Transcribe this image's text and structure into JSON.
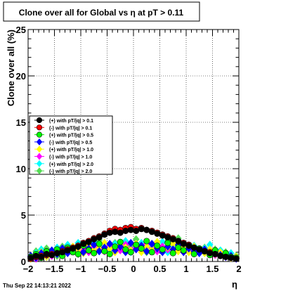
{
  "chart_data": {
    "type": "scatter",
    "title": "Clone  over all for Global vs    η at pT > 0.11",
    "xlabel": "η",
    "ylabel": "Clone  over all (%)",
    "xlim": [
      -2,
      2
    ],
    "ylim": [
      0,
      25
    ],
    "x_ticks": [
      -2,
      -1.5,
      -1,
      -0.5,
      0,
      0.5,
      1,
      1.5,
      2
    ],
    "x_tick_labels": [
      "−2",
      "−1.5",
      "−1",
      "−0.5",
      "0",
      "0.5",
      "1",
      "1.5",
      "2"
    ],
    "y_ticks": [
      0,
      5,
      10,
      15,
      20,
      25
    ],
    "y_tick_labels": [
      "0",
      "5",
      "10",
      "15",
      "20",
      "25"
    ],
    "grid": true,
    "legend_position": "left-middle",
    "x": [
      -1.95,
      -1.85,
      -1.75,
      -1.65,
      -1.55,
      -1.45,
      -1.35,
      -1.25,
      -1.15,
      -1.05,
      -0.95,
      -0.85,
      -0.75,
      -0.65,
      -0.55,
      -0.45,
      -0.35,
      -0.25,
      -0.15,
      -0.05,
      0.05,
      0.15,
      0.25,
      0.35,
      0.45,
      0.55,
      0.65,
      0.75,
      0.85,
      0.95,
      1.05,
      1.15,
      1.25,
      1.35,
      1.45,
      1.55,
      1.65,
      1.75,
      1.85,
      1.95
    ],
    "series": [
      {
        "name": "(+) with pT/|q| > 0.1",
        "color": "#000000",
        "shape": "circle",
        "values": [
          0.4,
          0.6,
          0.5,
          0.8,
          0.7,
          0.9,
          1.0,
          1.2,
          1.4,
          1.6,
          1.9,
          2.1,
          2.4,
          2.6,
          2.9,
          3.1,
          3.2,
          3.1,
          3.3,
          3.4,
          3.3,
          3.5,
          3.4,
          3.2,
          3.0,
          2.8,
          2.6,
          2.4,
          2.2,
          1.9,
          1.7,
          1.5,
          1.3,
          1.1,
          0.9,
          0.8,
          0.6,
          0.5,
          0.4,
          0.3
        ]
      },
      {
        "name": "(-) with pT/|q| > 0.1",
        "color": "#ff0000",
        "shape": "circle",
        "values": [
          0.3,
          0.5,
          0.6,
          0.7,
          0.8,
          0.9,
          1.1,
          1.3,
          1.5,
          1.7,
          2.0,
          2.2,
          2.5,
          2.7,
          3.0,
          3.3,
          3.5,
          3.4,
          3.6,
          3.7,
          3.5,
          3.6,
          3.4,
          3.3,
          3.1,
          2.9,
          2.7,
          2.5,
          2.2,
          2.0,
          1.8,
          1.5,
          1.3,
          1.1,
          1.0,
          0.8,
          0.6,
          0.5,
          0.4,
          0.3
        ]
      },
      {
        "name": "(+) with pT/|q| > 0.5",
        "color": "#00ff00",
        "shape": "circle",
        "values": [
          0.5,
          0.8,
          0.4,
          1.1,
          0.7,
          1.3,
          0.6,
          1.5,
          1.0,
          0.8,
          1.7,
          1.2,
          0.9,
          1.9,
          1.1,
          0.8,
          1.6,
          2.1,
          1.3,
          1.0,
          1.8,
          1.4,
          2.2,
          1.0,
          1.7,
          1.3,
          2.0,
          0.9,
          1.5,
          1.2,
          1.8,
          0.8,
          1.4,
          1.1,
          0.7,
          1.2,
          0.6,
          0.9,
          0.5,
          0.4
        ]
      },
      {
        "name": "(-) with pT/|q| > 0.5",
        "color": "#0000ff",
        "shape": "diamond",
        "values": [
          0.6,
          0.4,
          0.9,
          0.7,
          1.2,
          0.8,
          1.4,
          0.9,
          1.2,
          1.6,
          1.0,
          1.4,
          1.8,
          1.1,
          1.5,
          1.9,
          1.2,
          1.6,
          1.0,
          2.0,
          1.3,
          1.7,
          1.1,
          1.9,
          1.4,
          1.0,
          1.6,
          1.3,
          1.8,
          1.0,
          1.4,
          1.1,
          0.9,
          1.3,
          0.8,
          1.0,
          0.7,
          0.5,
          0.6,
          0.3
        ]
      },
      {
        "name": "(+) with pT/|q| > 1.0",
        "color": "#ffff00",
        "shape": "diamond",
        "values": [
          0.3,
          0.7,
          1.0,
          0.5,
          0.9,
          1.2,
          0.8,
          1.1,
          1.6,
          1.3,
          0.9,
          1.7,
          1.2,
          1.5,
          2.0,
          1.4,
          1.0,
          1.8,
          1.5,
          1.2,
          1.9,
          1.0,
          1.6,
          1.3,
          2.1,
          1.2,
          1.5,
          1.9,
          1.1,
          1.4,
          1.0,
          1.6,
          1.2,
          0.9,
          1.3,
          0.8,
          1.0,
          0.6,
          0.4,
          0.5
        ]
      },
      {
        "name": "(-) with pT/|q| > 1.0",
        "color": "#ff00ff",
        "shape": "diamond",
        "values": [
          0.5,
          0.3,
          0.8,
          1.0,
          0.6,
          1.1,
          0.9,
          1.3,
          1.1,
          1.5,
          1.2,
          1.0,
          1.6,
          1.3,
          1.1,
          1.7,
          1.4,
          1.2,
          1.8,
          1.3,
          1.5,
          1.2,
          1.9,
          1.4,
          1.1,
          1.6,
          1.3,
          1.0,
          1.5,
          1.2,
          1.1,
          1.3,
          1.0,
          1.2,
          0.9,
          0.7,
          0.8,
          0.5,
          0.4,
          0.3
        ]
      },
      {
        "name": "(+) with pT/|q| > 2.0",
        "color": "#00ffff",
        "shape": "diamond",
        "values": [
          0.4,
          0.9,
          1.3,
          0.6,
          1.0,
          1.5,
          0.8,
          1.8,
          1.2,
          2.0,
          0.9,
          1.4,
          2.1,
          1.1,
          1.6,
          1.0,
          1.9,
          1.3,
          2.2,
          1.0,
          1.6,
          2.0,
          1.2,
          1.8,
          1.4,
          2.1,
          1.0,
          1.5,
          1.9,
          1.1,
          1.3,
          1.7,
          0.9,
          1.4,
          1.8,
          1.0,
          1.2,
          0.7,
          0.9,
          0.5
        ]
      },
      {
        "name": "(-) with pT/|q| > 2.0",
        "color": "#55dd55",
        "shape": "diamond",
        "values": [
          0.6,
          1.1,
          0.7,
          1.4,
          0.9,
          0.6,
          1.6,
          1.0,
          1.3,
          0.8,
          1.8,
          1.2,
          1.0,
          2.3,
          1.4,
          1.1,
          2.0,
          1.5,
          1.2,
          1.7,
          2.4,
          1.3,
          1.0,
          1.9,
          1.6,
          1.2,
          2.2,
          1.8,
          2.5,
          1.4,
          1.2,
          1.6,
          1.0,
          1.5,
          0.9,
          1.3,
          0.7,
          1.0,
          0.5,
          0.6
        ]
      }
    ]
  },
  "footer": {
    "timestamp": "Thu Sep 22 14:13:21 2022"
  }
}
